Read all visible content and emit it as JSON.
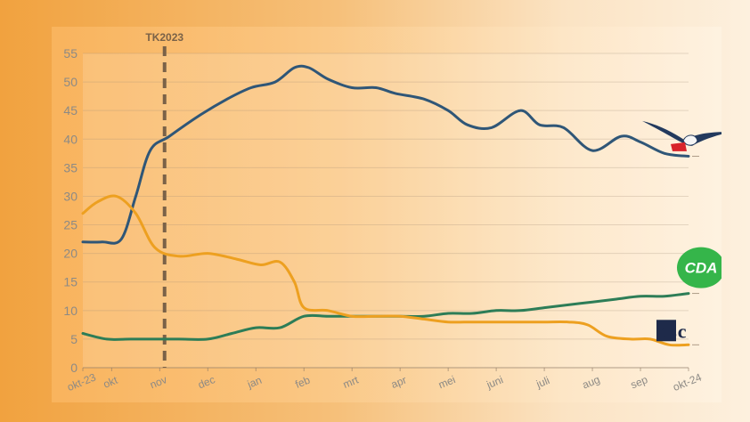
{
  "chart_data": {
    "type": "line",
    "title": "",
    "xlabel": "",
    "ylabel": "",
    "ylim": [
      0,
      55
    ],
    "yticks": [
      0,
      5,
      10,
      15,
      20,
      25,
      30,
      35,
      40,
      45,
      50,
      55
    ],
    "grid": true,
    "xrange": [
      0,
      12.6
    ],
    "xticks": [
      {
        "label": "okt-23",
        "x": 0
      },
      {
        "label": "okt",
        "x": 0.6
      },
      {
        "label": "nov",
        "x": 1.6
      },
      {
        "label": "dec",
        "x": 2.6
      },
      {
        "label": "jan",
        "x": 3.6
      },
      {
        "label": "feb",
        "x": 4.6
      },
      {
        "label": "mrt",
        "x": 5.6
      },
      {
        "label": "apr",
        "x": 6.6
      },
      {
        "label": "mei",
        "x": 7.6
      },
      {
        "label": "juni",
        "x": 8.6
      },
      {
        "label": "juli",
        "x": 9.6
      },
      {
        "label": "aug",
        "x": 10.6
      },
      {
        "label": "sep",
        "x": 11.6
      },
      {
        "label": "okt-24",
        "x": 12.6
      }
    ],
    "annotation": {
      "label": "TK2023",
      "x": 1.7
    },
    "series": [
      {
        "logo": "pvv-seagull-logo",
        "color": "#2f5677",
        "points": [
          [
            0,
            22
          ],
          [
            0.4,
            22
          ],
          [
            0.8,
            22.5
          ],
          [
            1.1,
            30
          ],
          [
            1.4,
            38
          ],
          [
            1.8,
            40.5
          ],
          [
            2.4,
            44
          ],
          [
            3.0,
            47
          ],
          [
            3.5,
            49
          ],
          [
            4.0,
            50
          ],
          [
            4.4,
            52.5
          ],
          [
            4.7,
            52.5
          ],
          [
            5.1,
            50.5
          ],
          [
            5.6,
            49
          ],
          [
            6.1,
            49
          ],
          [
            6.5,
            48
          ],
          [
            7.1,
            47
          ],
          [
            7.6,
            45
          ],
          [
            8.0,
            42.5
          ],
          [
            8.5,
            42
          ],
          [
            9.1,
            45
          ],
          [
            9.5,
            42.5
          ],
          [
            10.0,
            42
          ],
          [
            10.6,
            38
          ],
          [
            11.2,
            40.5
          ],
          [
            11.6,
            39.5
          ],
          [
            12.1,
            37.5
          ],
          [
            12.6,
            37
          ]
        ]
      },
      {
        "logo": "cda-logo",
        "logo_text": "CDA",
        "color": "#2d7d57",
        "points": [
          [
            0,
            6
          ],
          [
            0.5,
            5
          ],
          [
            1.0,
            5
          ],
          [
            1.5,
            5
          ],
          [
            2.0,
            5
          ],
          [
            2.6,
            5
          ],
          [
            3.1,
            6
          ],
          [
            3.6,
            7
          ],
          [
            4.1,
            7
          ],
          [
            4.6,
            9
          ],
          [
            5.1,
            9
          ],
          [
            5.6,
            9
          ],
          [
            6.1,
            9
          ],
          [
            6.6,
            9
          ],
          [
            7.1,
            9
          ],
          [
            7.6,
            9.5
          ],
          [
            8.1,
            9.5
          ],
          [
            8.6,
            10
          ],
          [
            9.1,
            10
          ],
          [
            9.6,
            10.5
          ],
          [
            10.1,
            11
          ],
          [
            10.6,
            11.5
          ],
          [
            11.1,
            12
          ],
          [
            11.6,
            12.5
          ],
          [
            12.1,
            12.5
          ],
          [
            12.6,
            13
          ]
        ]
      },
      {
        "logo": "nsc-logo",
        "logo_text": "nsc",
        "color": "#eda020",
        "points": [
          [
            0,
            27
          ],
          [
            0.3,
            29
          ],
          [
            0.7,
            30
          ],
          [
            1.1,
            27
          ],
          [
            1.5,
            21
          ],
          [
            2.0,
            19.5
          ],
          [
            2.6,
            20
          ],
          [
            3.2,
            19
          ],
          [
            3.7,
            18
          ],
          [
            4.1,
            18.5
          ],
          [
            4.4,
            15
          ],
          [
            4.6,
            10.5
          ],
          [
            5.1,
            10
          ],
          [
            5.6,
            9
          ],
          [
            6.1,
            9
          ],
          [
            6.6,
            9
          ],
          [
            7.1,
            8.5
          ],
          [
            7.6,
            8
          ],
          [
            8.1,
            8
          ],
          [
            8.6,
            8
          ],
          [
            9.1,
            8
          ],
          [
            9.6,
            8
          ],
          [
            10.1,
            8
          ],
          [
            10.5,
            7.5
          ],
          [
            10.9,
            5.5
          ],
          [
            11.4,
            5
          ],
          [
            11.8,
            5
          ],
          [
            12.2,
            4
          ],
          [
            12.6,
            4
          ]
        ]
      }
    ]
  }
}
